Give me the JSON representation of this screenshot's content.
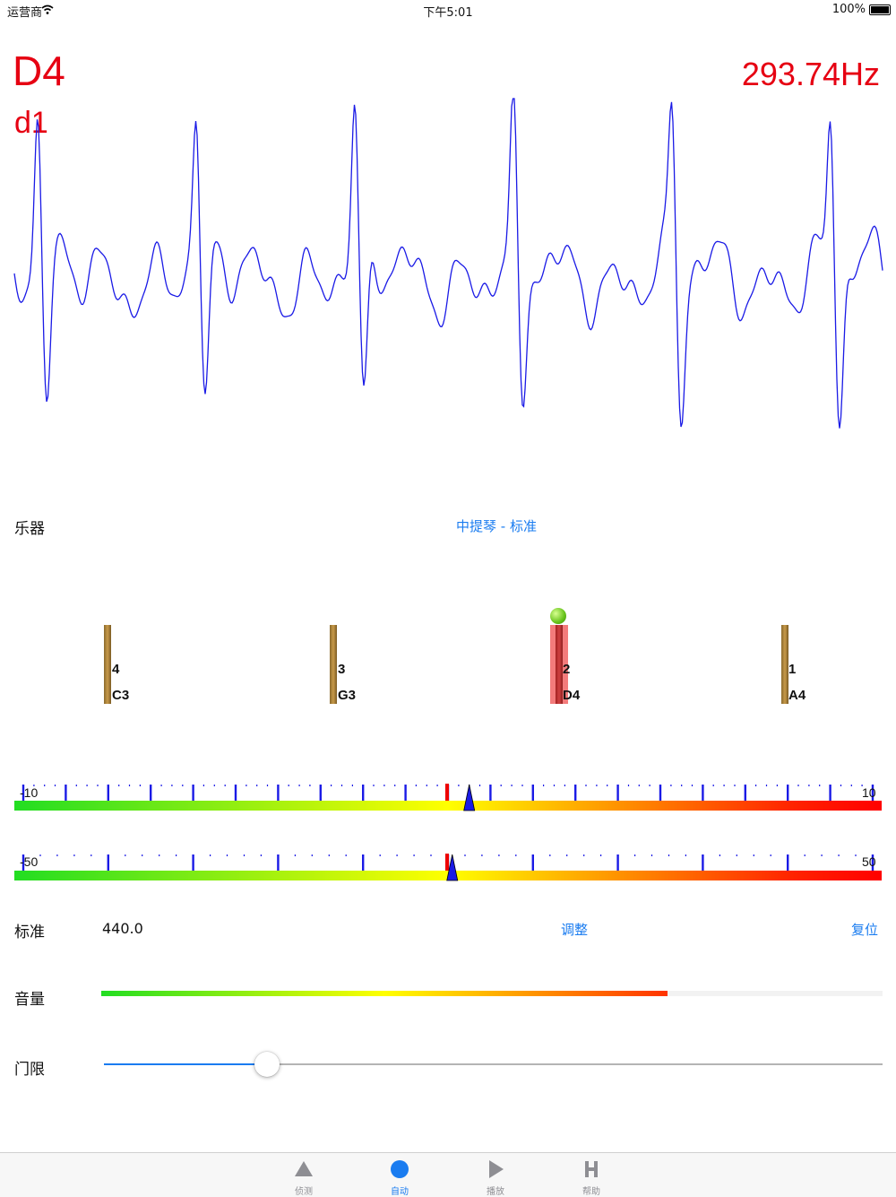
{
  "status": {
    "carrier": "运营商",
    "time": "下午5:01",
    "battery": "100%"
  },
  "reading": {
    "note": "D4",
    "solfege": "d1",
    "frequency": "293.74Hz"
  },
  "instrument": {
    "label": "乐器",
    "value": "中提琴 - 标准"
  },
  "strings": [
    {
      "number": "4",
      "note": "C3",
      "active": false
    },
    {
      "number": "3",
      "note": "G3",
      "active": false
    },
    {
      "number": "2",
      "note": "D4",
      "active": true
    },
    {
      "number": "1",
      "note": "A4",
      "active": false
    }
  ],
  "meter_fine": {
    "min_label": "-10",
    "max_label": "10",
    "min": -10,
    "max": 10,
    "value": 0.5
  },
  "meter_coarse": {
    "min_label": "-50",
    "max_label": "50",
    "min": -50,
    "max": 50,
    "value": 0.5
  },
  "reference": {
    "label": "标准",
    "value": "440.0",
    "adjust": "调整",
    "reset": "复位"
  },
  "volume": {
    "label": "音量",
    "level": 0.725
  },
  "threshold": {
    "label": "门限",
    "level": 0.21
  },
  "tabs": [
    {
      "label": "侦测",
      "icon": "triangle-up-icon",
      "active": false
    },
    {
      "label": "自动",
      "icon": "circle-icon",
      "active": true
    },
    {
      "label": "播放",
      "icon": "play-icon",
      "active": false
    },
    {
      "label": "帮助",
      "icon": "h-letter-icon",
      "active": false
    }
  ],
  "colors": {
    "accent": "#1a7cf0",
    "reading": "#e60012",
    "waveform": "#1a1ae6"
  }
}
